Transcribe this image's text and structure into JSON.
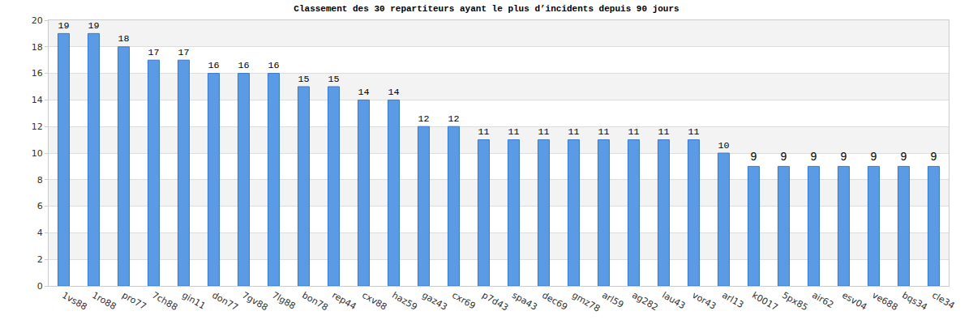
{
  "chart_data": {
    "type": "bar",
    "title": "Classement des 30 repartiteurs ayant le plus d’incidents depuis 90 jours",
    "categories": [
      "1vs88",
      "1ro88",
      "pro77",
      "7ch88",
      "gin11",
      "don77",
      "7gv88",
      "7lg88",
      "bon78",
      "rep44",
      "cxv88",
      "haz59",
      "gaz43",
      "cxr69",
      "p7d43",
      "spa43",
      "dec69",
      "gmz78",
      "arl59",
      "ag282",
      "lau43",
      "vor43",
      "arl13",
      "k0017",
      "5px85",
      "air62",
      "esv04",
      "ve688",
      "bqs34",
      "cle34"
    ],
    "values": [
      19,
      19,
      18,
      17,
      17,
      16,
      16,
      16,
      15,
      15,
      14,
      14,
      12,
      12,
      11,
      11,
      11,
      11,
      11,
      11,
      11,
      11,
      10,
      9,
      9,
      9,
      9,
      9,
      9,
      9
    ],
    "color": "#5b9be6",
    "ylim": [
      0,
      20
    ],
    "yticks": [
      0,
      2,
      4,
      6,
      8,
      10,
      12,
      14,
      16,
      18,
      20
    ],
    "grid": true,
    "data_labels": true
  }
}
